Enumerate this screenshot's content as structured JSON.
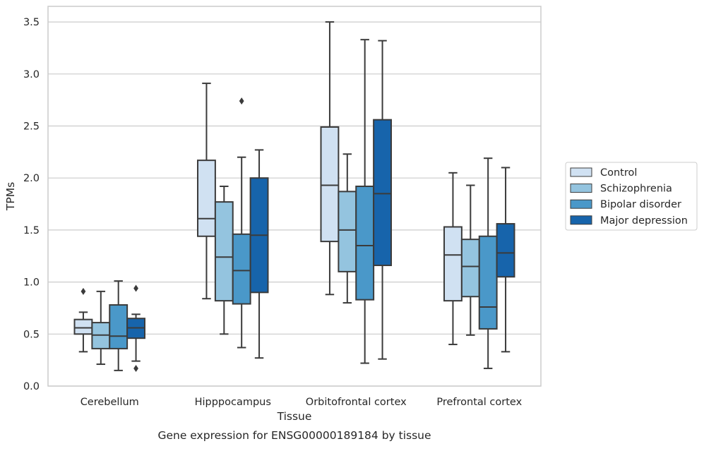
{
  "chart_data": {
    "type": "boxplot",
    "caption": "Gene expression for ENSG00000189184 by tissue",
    "xlabel": "Tissue",
    "ylabel": "TPMs",
    "ylim": [
      0.0,
      3.65
    ],
    "yticks": [
      "0.0",
      "0.5",
      "1.0",
      "1.5",
      "2.0",
      "2.5",
      "3.0",
      "3.5"
    ],
    "grid": "horizontal",
    "legend_position": "right",
    "categories": [
      "Cerebellum",
      "Hipppocampus",
      "Orbitofrontal cortex",
      "Prefrontal cortex"
    ],
    "series": [
      {
        "name": "Control",
        "color": "#d0e1f2",
        "boxes": [
          {
            "whislo": 0.33,
            "q1": 0.5,
            "med": 0.56,
            "q3": 0.64,
            "whishi": 0.71,
            "fliers": [
              0.91
            ]
          },
          {
            "whislo": 0.84,
            "q1": 1.44,
            "med": 1.61,
            "q3": 2.17,
            "whishi": 2.91,
            "fliers": []
          },
          {
            "whislo": 0.88,
            "q1": 1.39,
            "med": 1.93,
            "q3": 2.49,
            "whishi": 3.5,
            "fliers": []
          },
          {
            "whislo": 0.4,
            "q1": 0.82,
            "med": 1.26,
            "q3": 1.53,
            "whishi": 2.05,
            "fliers": []
          }
        ]
      },
      {
        "name": "Schizophrenia",
        "color": "#94c4df",
        "boxes": [
          {
            "whislo": 0.21,
            "q1": 0.36,
            "med": 0.49,
            "q3": 0.61,
            "whishi": 0.91,
            "fliers": []
          },
          {
            "whislo": 0.5,
            "q1": 0.82,
            "med": 1.24,
            "q3": 1.77,
            "whishi": 1.92,
            "fliers": []
          },
          {
            "whislo": 0.8,
            "q1": 1.1,
            "med": 1.5,
            "q3": 1.87,
            "whishi": 2.23,
            "fliers": []
          },
          {
            "whislo": 0.49,
            "q1": 0.86,
            "med": 1.15,
            "q3": 1.41,
            "whishi": 1.93,
            "fliers": []
          }
        ]
      },
      {
        "name": "Bipolar disorder",
        "color": "#4a98c9",
        "boxes": [
          {
            "whislo": 0.15,
            "q1": 0.36,
            "med": 0.48,
            "q3": 0.78,
            "whishi": 1.01,
            "fliers": []
          },
          {
            "whislo": 0.37,
            "q1": 0.79,
            "med": 1.11,
            "q3": 1.46,
            "whishi": 2.2,
            "fliers": [
              2.74
            ]
          },
          {
            "whislo": 0.22,
            "q1": 0.83,
            "med": 1.35,
            "q3": 1.92,
            "whishi": 3.33,
            "fliers": []
          },
          {
            "whislo": 0.17,
            "q1": 0.55,
            "med": 0.76,
            "q3": 1.44,
            "whishi": 2.19,
            "fliers": []
          }
        ]
      },
      {
        "name": "Major depression",
        "color": "#1764ab",
        "boxes": [
          {
            "whislo": 0.24,
            "q1": 0.46,
            "med": 0.56,
            "q3": 0.65,
            "whishi": 0.69,
            "fliers": [
              0.94,
              0.17
            ]
          },
          {
            "whislo": 0.27,
            "q1": 0.9,
            "med": 1.45,
            "q3": 2.0,
            "whishi": 2.27,
            "fliers": []
          },
          {
            "whislo": 0.26,
            "q1": 1.16,
            "med": 1.85,
            "q3": 2.56,
            "whishi": 3.32,
            "fliers": []
          },
          {
            "whislo": 0.33,
            "q1": 1.05,
            "med": 1.28,
            "q3": 1.56,
            "whishi": 2.1,
            "fliers": []
          }
        ]
      }
    ]
  }
}
